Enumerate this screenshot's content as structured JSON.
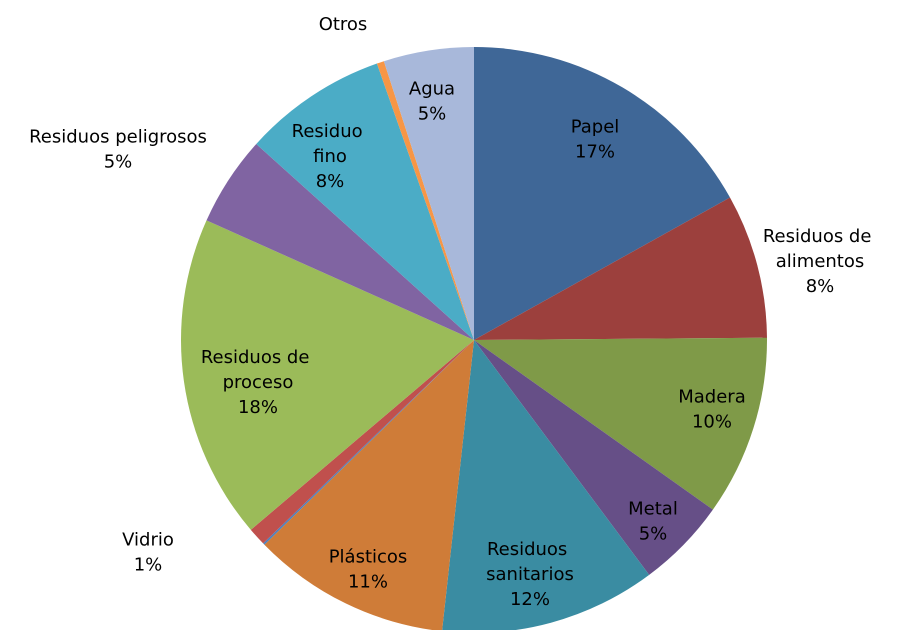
{
  "chart_data": {
    "type": "pie",
    "categories": [
      "Papel",
      "Residuos de alimentos",
      "Madera",
      "Metal",
      "Residuos sanitarios",
      "Plásticos",
      null,
      "Vidrio",
      "Residuos de proceso",
      "Residuos peligrosos",
      "Residuo fino",
      "Otros",
      "Agua"
    ],
    "values": [
      17,
      8,
      10,
      5,
      12,
      11,
      0.1,
      1,
      18,
      5,
      8,
      0.4,
      5
    ],
    "value_labels": [
      "17%",
      "8%",
      "10%",
      "5%",
      "12%",
      "11%",
      null,
      "1%",
      "18%",
      "5%",
      "8%",
      null,
      "5%"
    ],
    "colors": [
      "#3f6797",
      "#9c403d",
      "#7f9a48",
      "#664f87",
      "#3a8ca2",
      "#cf7c38",
      "#4f81bd",
      "#c0504d",
      "#9bbb59",
      "#8064a2",
      "#4bacc6",
      "#f79646",
      "#a8b8da"
    ]
  }
}
